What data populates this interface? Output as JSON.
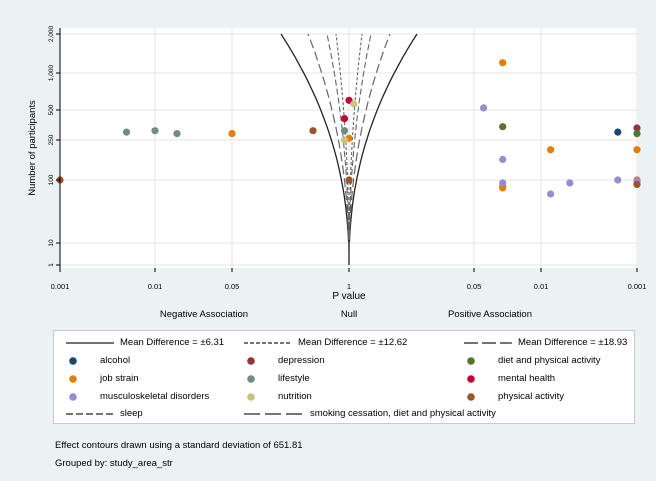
{
  "chart_data": {
    "type": "scatter",
    "subtype": "contour-enhanced funnel plot",
    "xlabel": "P value",
    "ylabel": "Number of participants",
    "x_ticks": [
      "0.001",
      "0.01",
      "0.05",
      "1",
      "0.05",
      "0.01",
      "0.001"
    ],
    "y_ticks": [
      "1",
      "10",
      "100",
      "250",
      "500",
      "1,000",
      "2,000"
    ],
    "y_scale": "log",
    "region_labels": [
      "Negative Association",
      "Null",
      "Positive Association"
    ],
    "contours": [
      {
        "label": "Mean Difference = ±6.31",
        "style": "solid"
      },
      {
        "label": "Mean Difference = ±12.62",
        "style": "short-dash"
      },
      {
        "label": "Mean Difference = ±18.93",
        "style": "long-dash"
      }
    ],
    "series": [
      {
        "name": "alcohol",
        "color": "#1a476f",
        "points": [
          [
            2.8,
            300
          ]
        ]
      },
      {
        "name": "depression",
        "color": "#90353b",
        "points": [
          [
            3.0,
            330
          ]
        ]
      },
      {
        "name": "diet and physical activity",
        "color": "#55752f",
        "points": [
          [
            1.6,
            340
          ],
          [
            3.0,
            290
          ]
        ]
      },
      {
        "name": "job strain",
        "color": "#e37e00",
        "points": [
          [
            -1.3,
            290
          ],
          [
            0.0,
            260
          ],
          [
            1.6,
            1200
          ],
          [
            2.1,
            200
          ],
          [
            3.0,
            200
          ],
          [
            3.0,
            100
          ],
          [
            1.6,
            80
          ],
          [
            1.6,
            75
          ],
          [
            3.0,
            90
          ]
        ]
      },
      {
        "name": "lifestyle",
        "color": "#6e8e84",
        "points": [
          [
            -1.8,
            290
          ],
          [
            -2.3,
            300
          ],
          [
            -2.0,
            310
          ],
          [
            -0.05,
            310
          ]
        ]
      },
      {
        "name": "mental health",
        "color": "#c10534",
        "points": [
          [
            0.0,
            600
          ],
          [
            -0.05,
            410
          ]
        ]
      },
      {
        "name": "musculoskeletal disorders",
        "color": "#938dd2",
        "points": [
          [
            1.4,
            520
          ],
          [
            1.6,
            160
          ],
          [
            1.6,
            90
          ],
          [
            2.1,
            60
          ],
          [
            2.3,
            90
          ],
          [
            2.8,
            100
          ],
          [
            3.0,
            95
          ]
        ]
      },
      {
        "name": "nutrition",
        "color": "#cac27e",
        "points": [
          [
            0.05,
            560
          ],
          [
            -0.05,
            250
          ]
        ]
      },
      {
        "name": "physical activity",
        "color": "#a0522d",
        "points": [
          [
            -0.4,
            310
          ],
          [
            0.0,
            100
          ],
          [
            -3.0,
            100
          ],
          [
            3.0,
            85
          ]
        ]
      },
      {
        "name": "sleep",
        "color": "#000000",
        "points": []
      },
      {
        "name": "smoking cessation, diet and physical activity",
        "color": "#000000",
        "points": []
      }
    ],
    "grid": true
  },
  "legend": {
    "rows": [
      [
        {
          "text": "Mean Difference = ±6.31",
          "sym": "line-solid"
        },
        {
          "text": "Mean Difference = ±12.62",
          "sym": "line-shortdash"
        },
        {
          "text": "Mean Difference = ±18.93",
          "sym": "line-longdash"
        }
      ],
      [
        {
          "text": "alcohol",
          "sym": "dot",
          "color": "#1a476f"
        },
        {
          "text": "depression",
          "sym": "dot",
          "color": "#90353b"
        },
        {
          "text": "diet and physical activity",
          "sym": "dot",
          "color": "#55752f"
        }
      ],
      [
        {
          "text": "job strain",
          "sym": "dot",
          "color": "#e37e00"
        },
        {
          "text": "lifestyle",
          "sym": "dot",
          "color": "#6e8e84"
        },
        {
          "text": "mental health",
          "sym": "dot",
          "color": "#c10534"
        }
      ],
      [
        {
          "text": "musculoskeletal disorders",
          "sym": "dot",
          "color": "#938dd2"
        },
        {
          "text": "nutrition",
          "sym": "dot",
          "color": "#cac27e"
        },
        {
          "text": "physical activity",
          "sym": "dot",
          "color": "#a0522d"
        }
      ],
      [
        {
          "text": "sleep",
          "sym": "line-mediumdash"
        },
        {
          "text": "smoking cessation, diet and physical activity",
          "sym": "line-longdash2"
        }
      ]
    ]
  },
  "notes": {
    "contour_note": "Effect contours drawn using a standard deviation of 651.81",
    "group_note": "Grouped by: study_area_str"
  }
}
